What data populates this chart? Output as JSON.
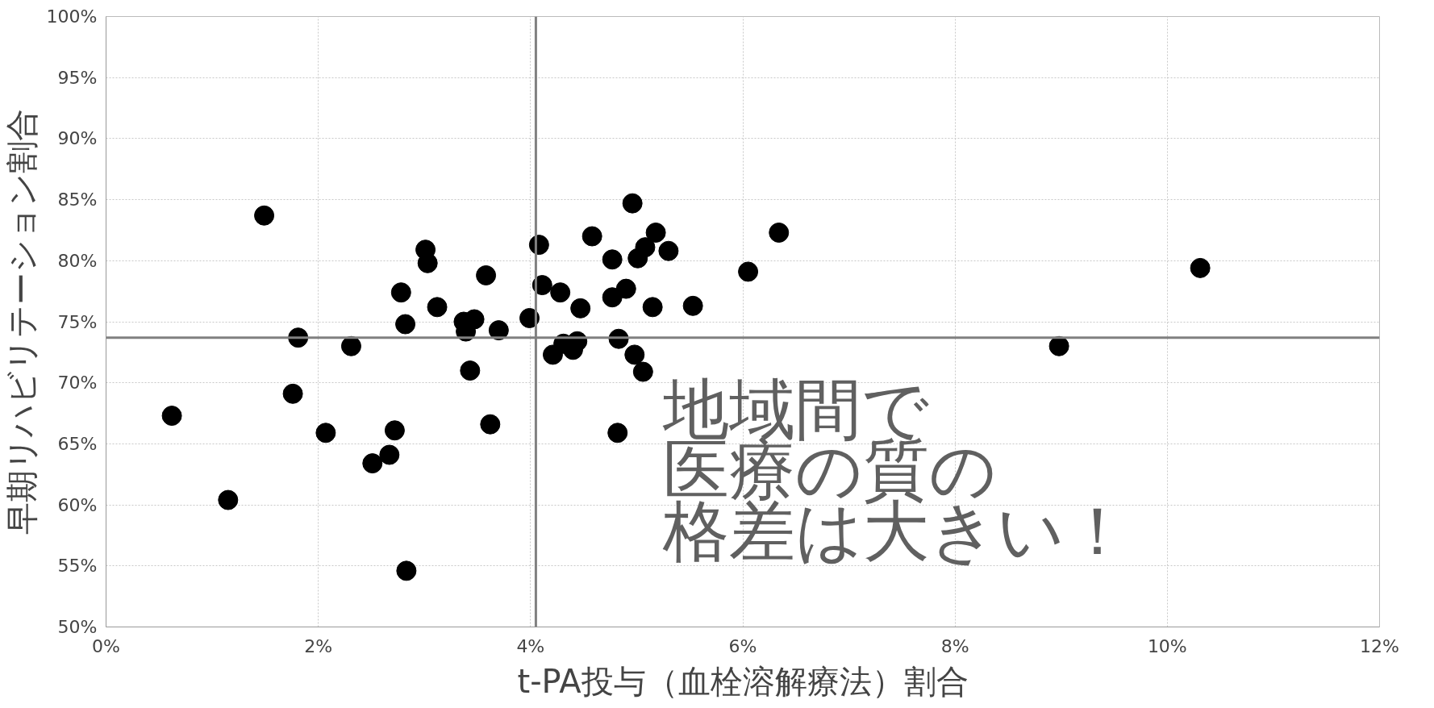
{
  "chart_data": {
    "type": "scatter",
    "xlabel": "t-PA投与（血栓溶解療法）割合",
    "ylabel": "早期リハビリテーション割合",
    "series": [
      {
        "color": "#000000",
        "x": [
          0.62,
          1.15,
          1.49,
          1.81,
          1.76,
          2.07,
          2.31,
          2.51,
          2.67,
          2.72,
          2.78,
          2.82,
          2.83,
          3.01,
          3.03,
          3.12,
          3.37,
          3.39,
          3.43,
          3.47,
          3.58,
          3.62,
          3.7,
          3.99,
          4.08,
          4.11,
          4.21,
          4.28,
          4.31,
          4.4,
          4.44,
          4.47,
          4.58,
          4.77,
          4.77,
          4.82,
          4.83,
          4.9,
          4.96,
          4.98,
          5.01,
          5.06,
          5.08,
          5.15,
          5.18,
          5.3,
          5.53,
          6.05,
          6.34,
          8.98,
          10.31
        ],
        "values": [
          67.3,
          60.4,
          83.7,
          73.7,
          69.1,
          65.9,
          73.0,
          63.4,
          64.1,
          66.1,
          77.4,
          74.8,
          54.6,
          80.9,
          79.8,
          76.2,
          75.0,
          74.2,
          71.0,
          75.2,
          78.8,
          66.6,
          74.3,
          75.3,
          81.3,
          78.0,
          72.3,
          77.4,
          73.2,
          72.7,
          73.4,
          76.1,
          82.0,
          80.1,
          77.0,
          65.9,
          73.6,
          77.7,
          84.7,
          72.3,
          80.2,
          70.9,
          81.1,
          76.2,
          82.3,
          80.8,
          76.3,
          79.1,
          82.3,
          73.0,
          79.4
        ]
      }
    ],
    "xlim": [
      0,
      12
    ],
    "ylim": [
      50,
      100
    ],
    "xticks": [
      {
        "value": 0,
        "label": "0%"
      },
      {
        "value": 2,
        "label": "2%"
      },
      {
        "value": 4,
        "label": "4%"
      },
      {
        "value": 6,
        "label": "6%"
      },
      {
        "value": 8,
        "label": "8%"
      },
      {
        "value": 10,
        "label": "10%"
      },
      {
        "value": 12,
        "label": "12%"
      }
    ],
    "yticks": [
      {
        "value": 50,
        "label": "50%"
      },
      {
        "value": 55,
        "label": "55%"
      },
      {
        "value": 60,
        "label": "60%"
      },
      {
        "value": 65,
        "label": "65%"
      },
      {
        "value": 70,
        "label": "70%"
      },
      {
        "value": 75,
        "label": "75%"
      },
      {
        "value": 80,
        "label": "80%"
      },
      {
        "value": 85,
        "label": "85%"
      },
      {
        "value": 90,
        "label": "90%"
      },
      {
        "value": 95,
        "label": "95%"
      },
      {
        "value": 100,
        "label": "100%"
      }
    ],
    "ref_lines": [
      {
        "axis": "y",
        "value": 73.7,
        "color": "#808080"
      },
      {
        "axis": "x",
        "value": 4.05,
        "color": "#808080"
      }
    ],
    "annotations": [
      "地域間で",
      "医療の質の",
      "格差は大きい！"
    ],
    "grid": true,
    "marker": "circle"
  }
}
